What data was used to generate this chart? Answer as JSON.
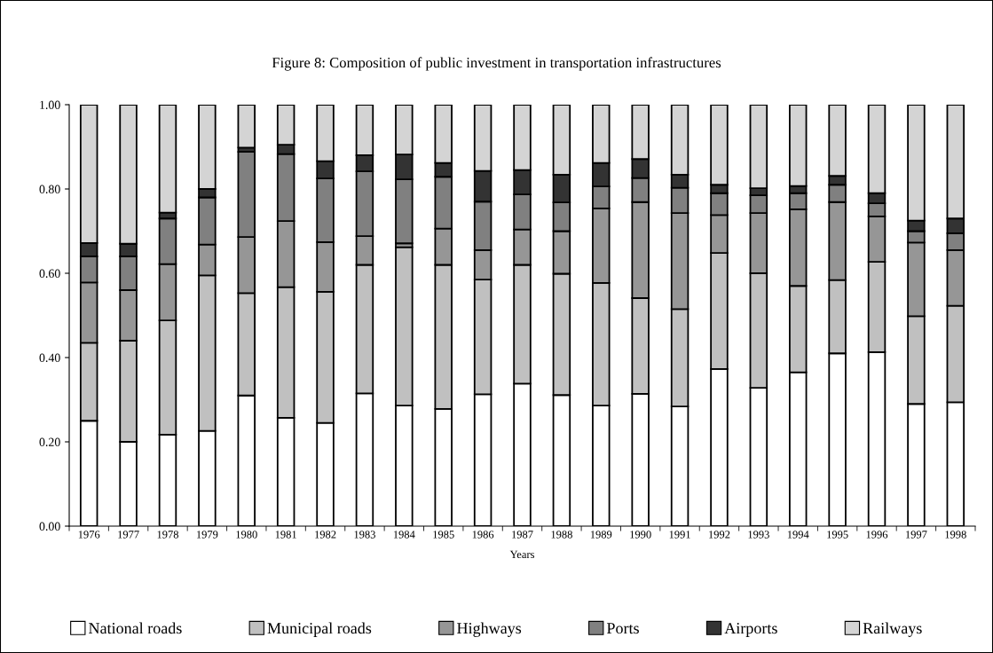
{
  "chart_data": {
    "type": "bar",
    "stacked": true,
    "title": "Figure 8: Composition of public investment in transportation infrastructures",
    "xlabel": "Years",
    "categories": [
      "1976",
      "1977",
      "1978",
      "1979",
      "1980",
      "1981",
      "1982",
      "1983",
      "1984",
      "1985",
      "1986",
      "1987",
      "1988",
      "1989",
      "1990",
      "1991",
      "1992",
      "1993",
      "1994",
      "1995",
      "1996",
      "1997",
      "1998"
    ],
    "ylim": [
      0,
      1
    ],
    "yticks": [
      {
        "value": 0,
        "label": "0.00"
      },
      {
        "value": 0.2,
        "label": "0.20"
      },
      {
        "value": 0.4,
        "label": "0.40"
      },
      {
        "value": 0.6,
        "label": "0.60"
      },
      {
        "value": 0.8,
        "label": "0.80"
      },
      {
        "value": 1,
        "label": "1.00"
      }
    ],
    "grid": false,
    "legend": "bottom",
    "series": [
      {
        "name": "National roads",
        "color": "#ffffff",
        "values": [
          0.25,
          0.2,
          0.217,
          0.226,
          0.31,
          0.257,
          0.245,
          0.315,
          0.286,
          0.278,
          0.313,
          0.338,
          0.311,
          0.286,
          0.314,
          0.284,
          0.373,
          0.328,
          0.365,
          0.41,
          0.413,
          0.29,
          0.294
        ]
      },
      {
        "name": "Municipal roads",
        "color": "#c0c0c0",
        "values": [
          0.185,
          0.24,
          0.271,
          0.369,
          0.243,
          0.31,
          0.311,
          0.305,
          0.376,
          0.342,
          0.272,
          0.282,
          0.288,
          0.291,
          0.227,
          0.231,
          0.275,
          0.272,
          0.205,
          0.174,
          0.214,
          0.208,
          0.229
        ]
      },
      {
        "name": "Highways",
        "color": "#969696",
        "values": [
          0.143,
          0.12,
          0.134,
          0.073,
          0.133,
          0.157,
          0.118,
          0.068,
          0.009,
          0.086,
          0.07,
          0.084,
          0.101,
          0.177,
          0.228,
          0.228,
          0.09,
          0.143,
          0.182,
          0.185,
          0.108,
          0.175,
          0.132
        ]
      },
      {
        "name": "Ports",
        "color": "#808080",
        "values": [
          0.062,
          0.08,
          0.108,
          0.112,
          0.202,
          0.159,
          0.151,
          0.154,
          0.152,
          0.123,
          0.115,
          0.083,
          0.068,
          0.052,
          0.057,
          0.06,
          0.052,
          0.042,
          0.038,
          0.041,
          0.031,
          0.027,
          0.04
        ]
      },
      {
        "name": "Airports",
        "color": "#333333",
        "values": [
          0.032,
          0.03,
          0.014,
          0.02,
          0.01,
          0.022,
          0.041,
          0.038,
          0.059,
          0.033,
          0.073,
          0.058,
          0.066,
          0.056,
          0.045,
          0.031,
          0.02,
          0.017,
          0.017,
          0.021,
          0.024,
          0.025,
          0.035
        ]
      },
      {
        "name": "Railways",
        "color": "#d4d4d4",
        "values": [
          0.328,
          0.33,
          0.256,
          0.2,
          0.102,
          0.095,
          0.134,
          0.12,
          0.118,
          0.138,
          0.157,
          0.155,
          0.166,
          0.138,
          0.129,
          0.166,
          0.19,
          0.198,
          0.193,
          0.169,
          0.21,
          0.275,
          0.27
        ]
      }
    ]
  }
}
